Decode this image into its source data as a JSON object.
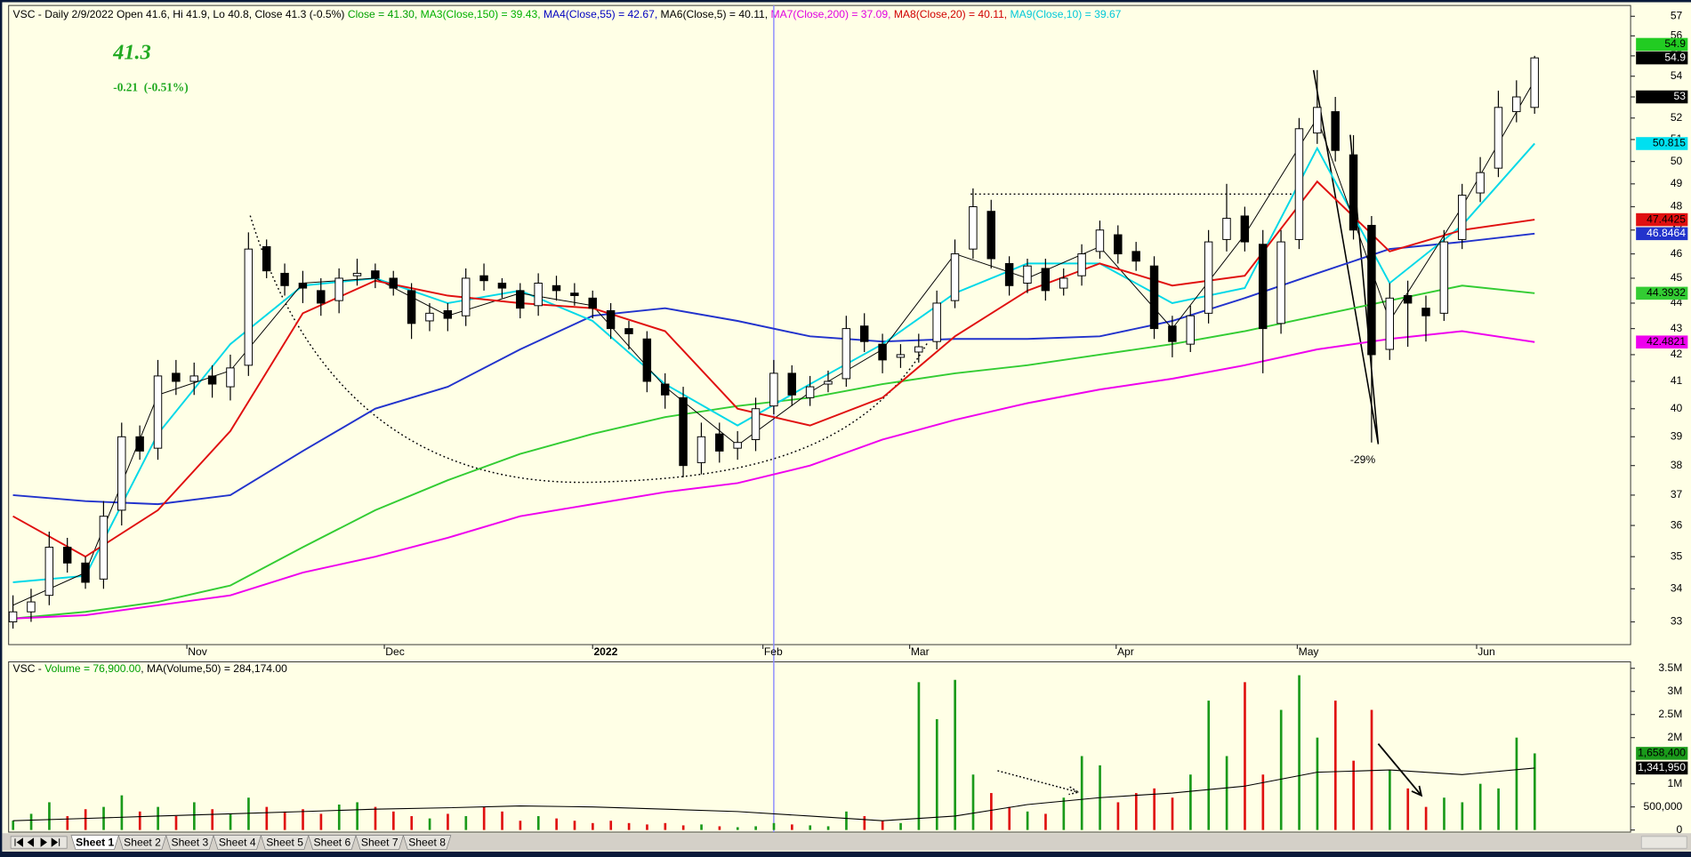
{
  "chart_data": [
    {
      "type": "candlestick",
      "title_segments": [
        {
          "text": "VSC - Daily 2/9/2022 Open 41.6, Hi 41.9, Lo 40.8, Close 41.3 (-0.5%) ",
          "color": "#000000"
        },
        {
          "text": "Close = 41.30, ",
          "color": "#00a000"
        },
        {
          "text": "MA3(Close,150) = 39.43, ",
          "color": "#00b000"
        },
        {
          "text": "MA4(Close,55) = 42.67, ",
          "color": "#0000c0"
        },
        {
          "text": "MA6(Close,5) = 40.11, ",
          "color": "#000000"
        },
        {
          "text": "MA7(Close,200) = 37.09, ",
          "color": "#e000e0"
        },
        {
          "text": "MA8(Close,20) = 40.11, ",
          "color": "#d00000"
        },
        {
          "text": "MA9(Close,10) = 39.67",
          "color": "#00c8d8"
        }
      ],
      "big_price": 41.3,
      "change_text": "-0.21  (-0.51%)",
      "annotation": "-29%",
      "up_color": "#ffffff",
      "down_color": "#000000",
      "open": [
        33.0,
        33.3,
        33.8,
        35.3,
        34.8,
        34.3,
        36.5,
        39.0,
        38.6,
        41.3,
        41.0,
        41.2,
        40.8,
        41.6,
        46.3,
        45.2,
        44.8,
        44.5,
        44.1,
        45.1,
        45.3,
        45.0,
        44.5,
        43.3,
        43.7,
        43.5,
        45.1,
        44.8,
        44.5,
        43.9,
        44.7,
        44.4,
        44.2,
        43.7,
        43.0,
        42.6,
        40.9,
        40.4,
        38.1,
        39.1,
        38.6,
        38.9,
        40.1,
        41.3,
        40.4,
        40.9,
        41.1,
        43.1,
        42.4,
        41.9,
        42.1,
        42.5,
        44.1,
        46.2,
        47.8,
        45.6,
        44.8,
        45.4,
        44.6,
        45.1,
        46.1,
        46.8,
        46.1,
        45.5,
        43.1,
        42.4,
        43.6,
        46.6,
        47.6,
        46.4,
        43.2,
        46.6,
        51.3,
        52.3,
        50.3,
        47.2,
        42.2,
        44.3,
        43.8,
        43.6,
        46.6,
        48.6,
        49.7,
        52.3,
        52.5
      ],
      "high": [
        33.8,
        34.0,
        35.8,
        35.6,
        35.0,
        36.8,
        39.5,
        39.4,
        41.8,
        41.8,
        41.7,
        41.6,
        42.0,
        46.9,
        46.6,
        45.6,
        45.3,
        45.0,
        45.4,
        45.8,
        45.6,
        45.3,
        44.8,
        44.0,
        44.0,
        45.4,
        45.6,
        45.0,
        44.8,
        45.2,
        45.1,
        44.8,
        44.5,
        44.0,
        43.3,
        42.9,
        41.3,
        40.8,
        39.5,
        39.5,
        39.2,
        40.4,
        41.8,
        41.6,
        41.2,
        41.4,
        43.5,
        43.6,
        42.8,
        42.4,
        42.8,
        44.5,
        46.6,
        48.8,
        48.3,
        45.9,
        45.8,
        45.8,
        45.4,
        46.4,
        47.4,
        47.2,
        46.5,
        45.9,
        43.5,
        43.9,
        47.0,
        49.0,
        48.0,
        47.0,
        47.0,
        52.0,
        54.3,
        53.0,
        51.2,
        47.6,
        44.8,
        44.9,
        44.3,
        47.0,
        49.0,
        50.2,
        53.3,
        53.8,
        55.0
      ],
      "low": [
        32.8,
        33.0,
        33.5,
        34.5,
        34.0,
        34.0,
        36.0,
        38.2,
        38.2,
        40.5,
        40.5,
        40.4,
        40.3,
        41.2,
        45.0,
        44.3,
        44.0,
        43.5,
        43.6,
        44.7,
        44.6,
        44.3,
        42.6,
        42.9,
        42.9,
        43.1,
        44.5,
        44.2,
        43.4,
        43.5,
        44.1,
        43.9,
        43.4,
        42.6,
        42.2,
        40.6,
        40.0,
        37.6,
        37.7,
        38.1,
        38.2,
        38.5,
        39.8,
        40.1,
        40.1,
        40.6,
        40.8,
        42.1,
        41.3,
        41.5,
        41.7,
        42.2,
        43.8,
        45.8,
        45.4,
        44.3,
        44.4,
        44.1,
        44.3,
        44.7,
        45.8,
        45.6,
        45.3,
        42.6,
        41.9,
        42.1,
        43.2,
        46.1,
        46.1,
        41.3,
        42.8,
        46.2,
        50.8,
        50.0,
        46.6,
        38.8,
        41.8,
        42.3,
        42.5,
        43.3,
        46.2,
        48.2,
        49.3,
        51.8,
        52.2
      ],
      "close": [
        33.3,
        33.6,
        35.3,
        34.8,
        34.2,
        36.3,
        39.0,
        38.5,
        41.2,
        41.0,
        41.2,
        40.9,
        41.5,
        46.2,
        45.3,
        44.7,
        44.6,
        44.0,
        45.0,
        45.2,
        45.0,
        44.6,
        43.2,
        43.6,
        43.4,
        45.0,
        44.9,
        44.6,
        43.8,
        44.8,
        44.5,
        44.3,
        43.8,
        43.0,
        42.8,
        41.0,
        40.5,
        38.0,
        39.0,
        38.5,
        38.8,
        40.0,
        41.3,
        40.5,
        40.8,
        41.0,
        43.0,
        42.5,
        41.8,
        42.0,
        42.3,
        44.0,
        46.0,
        48.0,
        45.8,
        44.7,
        45.5,
        44.5,
        45.0,
        46.0,
        47.0,
        46.0,
        45.7,
        43.0,
        42.5,
        43.5,
        46.5,
        47.5,
        46.5,
        43.0,
        46.5,
        51.5,
        52.5,
        50.5,
        47.0,
        42.0,
        44.2,
        44.0,
        43.5,
        46.5,
        48.5,
        49.5,
        52.5,
        53.0,
        54.9
      ],
      "moving_averages": [
        {
          "color": "#33cc33",
          "x": [
            0,
            4,
            8,
            12,
            16,
            20,
            24,
            28,
            32,
            36,
            40,
            44,
            48,
            52,
            56,
            60,
            64,
            68,
            72,
            76,
            80,
            84
          ],
          "values": [
            33.1,
            33.3,
            33.6,
            34.1,
            35.3,
            36.5,
            37.5,
            38.4,
            39.1,
            39.7,
            40.1,
            40.4,
            40.9,
            41.3,
            41.6,
            42.0,
            42.4,
            42.9,
            43.5,
            44.1,
            44.7,
            44.3932
          ]
        },
        {
          "color": "#2233cc",
          "x": [
            0,
            4,
            8,
            12,
            16,
            20,
            24,
            28,
            32,
            36,
            40,
            44,
            48,
            52,
            56,
            60,
            64,
            68,
            72,
            76,
            80,
            84
          ],
          "values": [
            37.0,
            36.8,
            36.7,
            37.0,
            38.5,
            40.0,
            40.8,
            42.2,
            43.5,
            43.8,
            43.3,
            42.7,
            42.5,
            42.6,
            42.6,
            42.7,
            43.3,
            44.2,
            45.2,
            46.2,
            46.5,
            46.8464
          ]
        },
        {
          "color": "#ee00ee",
          "x": [
            0,
            4,
            8,
            12,
            16,
            20,
            24,
            28,
            32,
            36,
            40,
            44,
            48,
            52,
            56,
            60,
            64,
            68,
            72,
            76,
            80,
            84
          ],
          "values": [
            33.1,
            33.2,
            33.5,
            33.8,
            34.5,
            35.0,
            35.6,
            36.3,
            36.7,
            37.1,
            37.4,
            38.0,
            38.9,
            39.6,
            40.2,
            40.7,
            41.1,
            41.6,
            42.2,
            42.6,
            42.9,
            42.4821
          ]
        },
        {
          "color": "#00d8e8",
          "x": [
            0,
            4,
            8,
            12,
            16,
            20,
            24,
            28,
            32,
            36,
            40,
            44,
            48,
            52,
            56,
            60,
            64,
            68,
            72,
            76,
            80,
            84
          ],
          "values": [
            34.2,
            34.4,
            39.1,
            42.4,
            44.7,
            45.0,
            44.0,
            44.5,
            43.3,
            40.9,
            39.4,
            40.9,
            42.4,
            44.4,
            45.6,
            45.6,
            44.0,
            44.6,
            50.6,
            44.8,
            47.2,
            50.815
          ]
        },
        {
          "color": "#000000",
          "x": [
            0,
            4,
            8,
            12,
            16,
            20,
            24,
            28,
            32,
            36,
            40,
            44,
            48,
            52,
            56,
            60,
            64,
            68,
            72,
            76,
            80,
            84
          ],
          "values": [
            33.5,
            34.5,
            40.5,
            41.4,
            44.8,
            45.0,
            43.5,
            44.4,
            43.9,
            40.8,
            38.7,
            40.6,
            42.2,
            46.0,
            45.0,
            46.3,
            43.0,
            46.8,
            52.0,
            43.3,
            48.0,
            53.8
          ]
        },
        {
          "color": "#e01010",
          "x": [
            0,
            4,
            8,
            12,
            16,
            20,
            24,
            28,
            32,
            36,
            40,
            44,
            48,
            52,
            56,
            60,
            64,
            68,
            72,
            76,
            80,
            84
          ],
          "values": [
            36.3,
            35.0,
            36.5,
            39.2,
            43.6,
            44.9,
            44.3,
            44.0,
            43.8,
            42.9,
            40.0,
            39.4,
            40.4,
            42.7,
            44.5,
            45.6,
            44.7,
            45.1,
            49.1,
            46.1,
            47.0,
            47.4425
          ]
        }
      ],
      "price_labels": [
        {
          "value": 54.9,
          "color": "#22cc22",
          "text_color": "#000000"
        },
        {
          "value": 54.9,
          "color": "#000000",
          "text_color": "#ffffff"
        },
        {
          "value": 53,
          "color": "#000000",
          "text_color": "#ffffff"
        },
        {
          "value": 50.815,
          "color": "#00e0f0",
          "text_color": "#000000"
        },
        {
          "value": 47.4425,
          "color": "#e01010",
          "text_color": "#000000"
        },
        {
          "value": 46.8464,
          "color": "#2233cc",
          "text_color": "#ffffff"
        },
        {
          "value": 44.3932,
          "color": "#33cc33",
          "text_color": "#000000"
        },
        {
          "value": 42.4821,
          "color": "#ee00ee",
          "text_color": "#000000"
        }
      ],
      "log": true,
      "ylim": [
        32.33,
        57.56
      ],
      "yticks": [
        33,
        34,
        35,
        36,
        37,
        38,
        39,
        40,
        41,
        42,
        43,
        44,
        45,
        46,
        47,
        48,
        49,
        50,
        51,
        52,
        53,
        54,
        55,
        56,
        57
      ],
      "xlim": [
        -0.24,
        89.3
      ],
      "xticks": [
        {
          "value": 9.6,
          "label": "Nov"
        },
        {
          "value": 20.5,
          "label": "Dec"
        },
        {
          "value": 32,
          "label": "2022"
        },
        {
          "value": 41.4,
          "label": "Feb"
        },
        {
          "value": 49.5,
          "label": "Mar"
        },
        {
          "value": 60.9,
          "label": "Apr"
        },
        {
          "value": 70.9,
          "label": "May"
        },
        {
          "value": 80.8,
          "label": "Jun"
        }
      ],
      "cursor_bar": 42
    },
    {
      "type": "bar",
      "title_segments": [
        {
          "text": "VSC - ",
          "color": "#000000"
        },
        {
          "text": "Volume = 76,900.00",
          "color": "#00a000"
        },
        {
          "text": ", MA(Volume,50) = 284,174.00",
          "color": "#000000"
        }
      ],
      "up_color": "#1a9a1a",
      "down_color": "#e01010",
      "values": [
        200000,
        350000,
        600000,
        300000,
        450000,
        500000,
        750000,
        400000,
        500000,
        300000,
        600000,
        450000,
        350000,
        700000,
        500000,
        400000,
        450000,
        350000,
        550000,
        600000,
        500000,
        400000,
        300000,
        250000,
        350000,
        300000,
        500000,
        400000,
        200000,
        300000,
        250000,
        200000,
        150000,
        200000,
        150000,
        120000,
        150000,
        100000,
        120000,
        80000,
        60000,
        80000,
        150000,
        120000,
        100000,
        80000,
        400000,
        300000,
        200000,
        150000,
        3200000,
        2400000,
        3250000,
        1200000,
        800000,
        500000,
        400000,
        350000,
        700000,
        1600000,
        1400000,
        600000,
        800000,
        900000,
        700000,
        1200000,
        2800000,
        1600000,
        3200000,
        1200000,
        2600000,
        3350000,
        2000000,
        2800000,
        1500000,
        2600000,
        1300000,
        900000,
        500000,
        700000,
        600000,
        1000000,
        900000,
        2000000,
        1658400
      ],
      "ma": {
        "color": "#000000",
        "x": [
          0,
          4,
          8,
          12,
          16,
          20,
          24,
          28,
          32,
          36,
          40,
          44,
          48,
          52,
          56,
          60,
          64,
          68,
          72,
          76,
          80,
          84
        ],
        "values": [
          200000,
          250000,
          300000,
          350000,
          400000,
          450000,
          480000,
          520000,
          500000,
          450000,
          400000,
          300000,
          200000,
          300000,
          550000,
          700000,
          800000,
          950000,
          1250000,
          1300000,
          1200000,
          1341950
        ]
      },
      "value_labels": [
        {
          "value": 1658400,
          "label": "1,658,400",
          "color": "#1a9a1a",
          "text_color": "#000000"
        },
        {
          "value": 1341950,
          "label": "1,341,950",
          "color": "#000000",
          "text_color": "#ffffff"
        }
      ],
      "xlim": [
        -0.24,
        89.3
      ],
      "ylim": [
        0,
        3640000
      ],
      "yticks": [
        0,
        {
          "value": 500000,
          "label": "500,000"
        },
        {
          "value": 1000000,
          "label": "1M"
        },
        {
          "value": 2000000,
          "label": "2M"
        },
        {
          "value": 2500000,
          "label": "2.5M"
        },
        {
          "value": 3000000,
          "label": "3M"
        },
        {
          "value": 3500000,
          "label": "3.5M"
        }
      ]
    }
  ],
  "tabs": [
    "Sheet 1",
    "Sheet 2",
    "Sheet 3",
    "Sheet 4",
    "Sheet 5",
    "Sheet 6",
    "Sheet 7",
    "Sheet 8"
  ]
}
